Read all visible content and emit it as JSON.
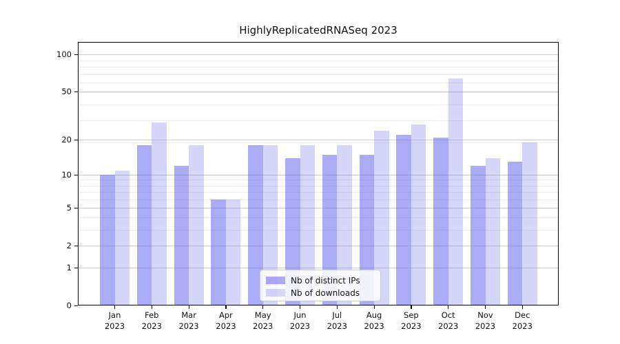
{
  "title": "HighlyReplicatedRNASeq 2023",
  "legend": {
    "series1_label": "Nb of distinct IPs",
    "series2_label": "Nb of downloads"
  },
  "chart_data": {
    "type": "bar",
    "title": "HighlyReplicatedRNASeq 2023",
    "categories": [
      "Jan",
      "Feb",
      "Mar",
      "Apr",
      "May",
      "Jun",
      "Jul",
      "Aug",
      "Sep",
      "Oct",
      "Nov",
      "Dec"
    ],
    "year_label": "2023",
    "series": [
      {
        "name": "Nb of distinct IPs",
        "color": "#6666ee",
        "alpha": 0.55,
        "values": [
          10,
          18,
          12,
          6,
          18,
          14,
          15,
          15,
          22,
          21,
          12,
          13
        ]
      },
      {
        "name": "Nb of downloads",
        "color": "#6666ee",
        "alpha": 0.27,
        "values": [
          11,
          28,
          18,
          6,
          18,
          18,
          18,
          24,
          27,
          64,
          14,
          19
        ]
      }
    ],
    "xlabel": "",
    "ylabel": "",
    "yscale": "log1p",
    "ylim": [
      0,
      126
    ],
    "yticks": [
      0,
      1,
      2,
      5,
      10,
      20,
      50,
      100
    ],
    "minor_gridlines_at": [
      3,
      4,
      6,
      7,
      8,
      9,
      19,
      29,
      39,
      49,
      59,
      69,
      79,
      89
    ],
    "grid": {
      "major_color": "#cccccc",
      "minor_color": "#ebebeb",
      "on": true
    },
    "legend_position": "lower center",
    "axis_color": "#000000",
    "background_color": "#ffffff"
  }
}
